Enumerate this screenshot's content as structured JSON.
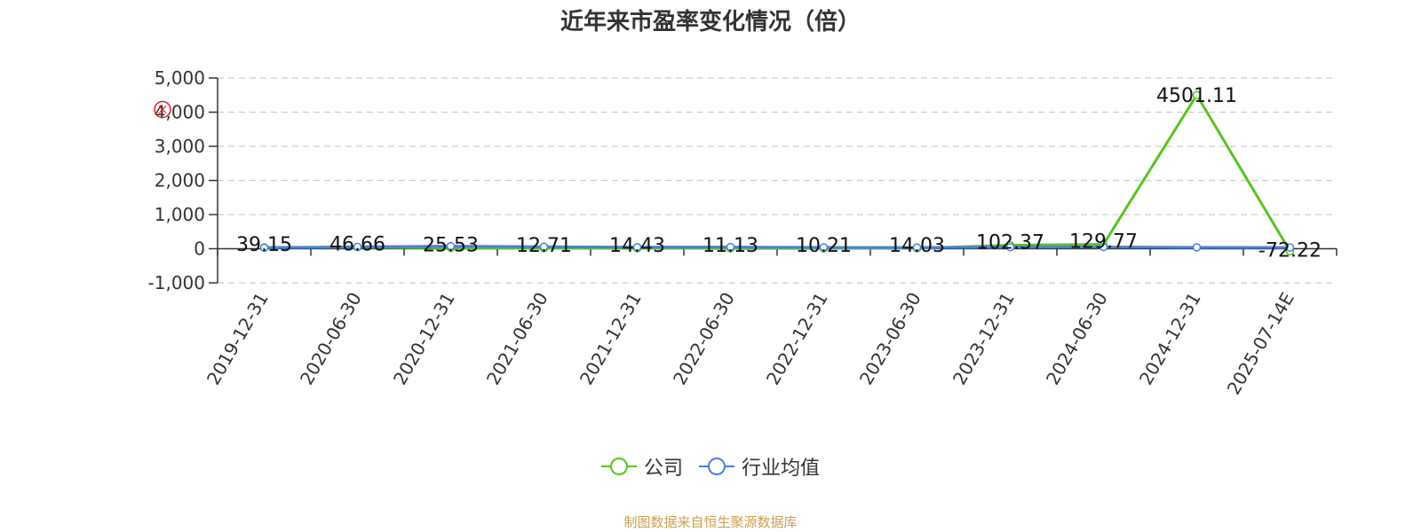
{
  "title": "近年来市盈率变化情况（倍）",
  "source_note": "制图数据来自恒生聚源数据库",
  "colors": {
    "company": "#58c322",
    "industry": "#4a7fdc",
    "grid": "#cccccc",
    "axis": "#333333",
    "seal": "#e02020"
  },
  "chart_data": {
    "type": "line",
    "title": "近年来市盈率变化情况（倍）",
    "categories": [
      "2019-12-31",
      "2020-06-30",
      "2020-12-31",
      "2021-06-30",
      "2021-12-31",
      "2022-06-30",
      "2022-12-31",
      "2023-06-30",
      "2023-12-31",
      "2024-06-30",
      "2024-12-31",
      "2025-07-14E"
    ],
    "y_ticks": [
      "5,000",
      "4,000",
      "3,000",
      "2,000",
      "1,000",
      "0",
      "-1,000"
    ],
    "ylim": [
      -1000,
      5000
    ],
    "grid": true,
    "legend_position": "bottom",
    "series": [
      {
        "name": "公司",
        "values": [
          39.15,
          46.66,
          25.53,
          12.71,
          14.43,
          11.13,
          10.21,
          14.03,
          102.37,
          129.77,
          4501.11,
          -72.22
        ],
        "labels": [
          "39.15",
          "46.66",
          "25.53",
          "12.71",
          "14.43",
          "11.13",
          "10.21",
          "14.03",
          "102.37",
          "129.77",
          "4501.11",
          "-72.22"
        ]
      },
      {
        "name": "行业均值",
        "values": [
          30,
          55,
          75,
          60,
          45,
          50,
          40,
          35,
          45,
          50,
          40,
          35
        ]
      }
    ]
  }
}
